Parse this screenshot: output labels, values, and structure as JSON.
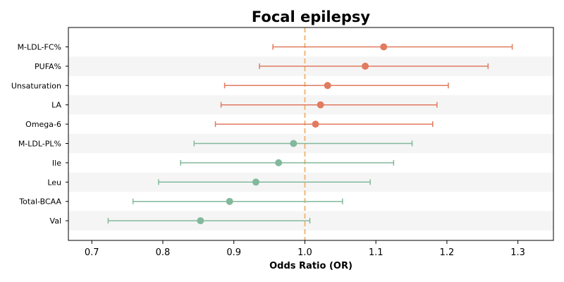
{
  "chart_data": {
    "type": "forest",
    "title": "Focal epilepsy",
    "xlabel": "Odds Ratio (OR)",
    "ylabel": "",
    "xlim": [
      0.667,
      1.35
    ],
    "x_ticks": [
      "0.7",
      "0.8",
      "0.9",
      "1.0",
      "1.1",
      "1.2",
      "1.3"
    ],
    "reference_line": 1.0,
    "reference_color": "#f0b77a",
    "grid": false,
    "row_band_color": "#f5f5f5",
    "colors": {
      "risk": "#e07b5f",
      "protective": "#82b99b"
    },
    "rows": [
      {
        "label": "M-LDL-FC%",
        "or": 1.111,
        "lower": 0.955,
        "upper": 1.292,
        "group": "risk"
      },
      {
        "label": "PUFA%",
        "or": 1.085,
        "lower": 0.936,
        "upper": 1.258,
        "group": "risk"
      },
      {
        "label": "Unsaturation",
        "or": 1.032,
        "lower": 0.887,
        "upper": 1.202,
        "group": "risk"
      },
      {
        "label": "LA",
        "or": 1.022,
        "lower": 0.882,
        "upper": 1.186,
        "group": "risk"
      },
      {
        "label": "Omega-6",
        "or": 1.015,
        "lower": 0.874,
        "upper": 1.18,
        "group": "risk"
      },
      {
        "label": "M-LDL-PL%",
        "or": 0.984,
        "lower": 0.844,
        "upper": 1.151,
        "group": "protective"
      },
      {
        "label": "Ile",
        "or": 0.963,
        "lower": 0.825,
        "upper": 1.125,
        "group": "protective"
      },
      {
        "label": "Leu",
        "or": 0.931,
        "lower": 0.794,
        "upper": 1.092,
        "group": "protective"
      },
      {
        "label": "Total-BCAA",
        "or": 0.894,
        "lower": 0.758,
        "upper": 1.053,
        "group": "protective"
      },
      {
        "label": "Val",
        "or": 0.853,
        "lower": 0.723,
        "upper": 1.007,
        "group": "protective"
      }
    ]
  }
}
